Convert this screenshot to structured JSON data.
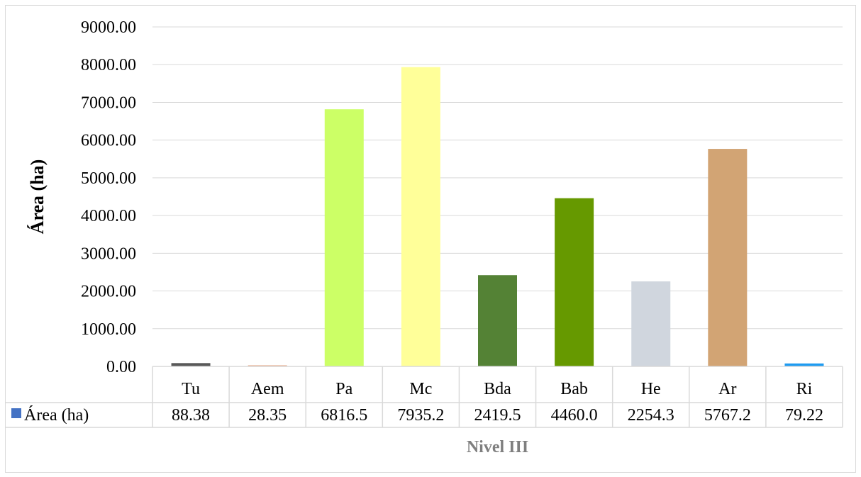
{
  "chart_data": {
    "type": "bar",
    "title": "",
    "ylabel": "Área (ha)",
    "xlabel": "Nivel III",
    "ylim": [
      0,
      9000
    ],
    "y_ticks": [
      "0.00",
      "1000.00",
      "2000.00",
      "3000.00",
      "4000.00",
      "5000.00",
      "6000.00",
      "7000.00",
      "8000.00",
      "9000.00"
    ],
    "categories": [
      "Tu",
      "Aem",
      "Pa",
      "Mc",
      "Bda",
      "Bab",
      "He",
      "Ar",
      "Ri"
    ],
    "series": [
      {
        "name": "Área (ha)",
        "values": [
          88.38,
          28.35,
          6816.5,
          7935.2,
          2419.5,
          4460.0,
          2254.3,
          5767.2,
          79.22
        ],
        "labels": [
          "88.38",
          "28.35",
          "6816.5",
          "7935.2",
          "2419.5",
          "4460.0",
          "2254.3",
          "5767.2",
          "79.22"
        ],
        "legend_color": "#4472c4"
      }
    ],
    "bar_colors": [
      "#595959",
      "#e3a07a",
      "#ccff66",
      "#ffff99",
      "#548235",
      "#669900",
      "#d0d6de",
      "#d2a474",
      "#1f9bf0"
    ],
    "grid": true,
    "legend": "data-table"
  }
}
